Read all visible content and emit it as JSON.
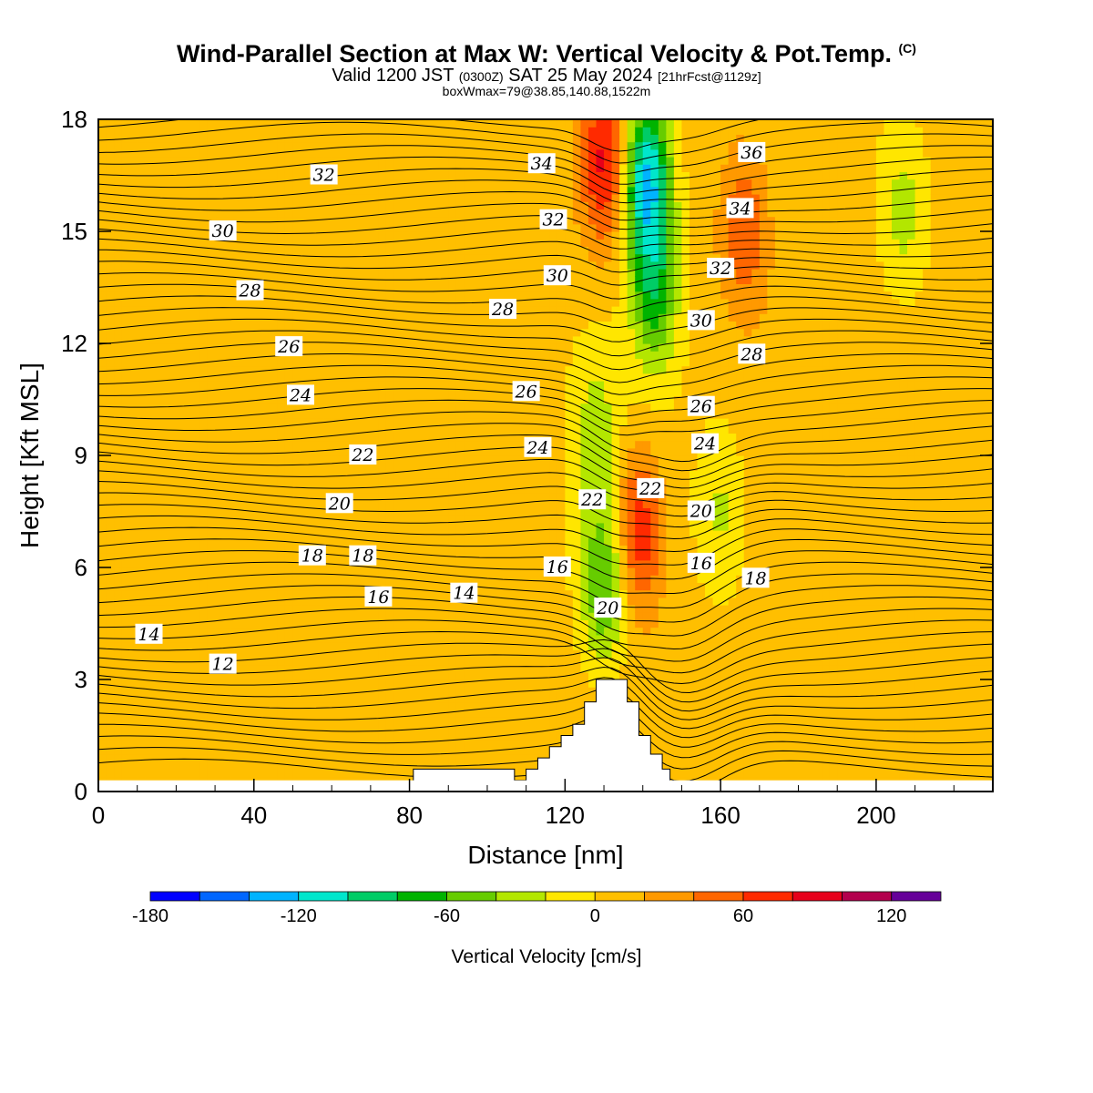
{
  "header": {
    "title": "Wind-Parallel Section at Max W: Vertical Velocity & Pot.Temp.",
    "copyright": "(C)",
    "valid_prefix": "Valid 1200 JST",
    "valid_utc": "(0300Z)",
    "valid_date": "SAT 25 May 2024",
    "forecast": "[21hrFcst@1129z]",
    "box_info": "boxWmax=79@38.85,140.88,1522m"
  },
  "chart_data": {
    "type": "heatmap",
    "xlabel": "Distance [nm]",
    "ylabel": "Height [Kft MSL]",
    "xlim": [
      0,
      230
    ],
    "ylim": [
      0,
      18
    ],
    "x_ticks": [
      "0",
      "40",
      "80",
      "120",
      "160",
      "200"
    ],
    "y_ticks": [
      "0",
      "3",
      "6",
      "9",
      "12",
      "15",
      "18"
    ],
    "colorbar": {
      "label": "Vertical Velocity [cm/s]",
      "ticks": [
        "-180",
        "-120",
        "-60",
        "0",
        "60",
        "120"
      ],
      "levels": [
        -180,
        -160,
        -140,
        -120,
        -100,
        -80,
        -60,
        -40,
        -20,
        0,
        20,
        40,
        60,
        80,
        100,
        120,
        140
      ],
      "colors": [
        "#0000ff",
        "#0066ff",
        "#00b3ff",
        "#00e6cc",
        "#00cc66",
        "#00b300",
        "#66cc00",
        "#b3e600",
        "#ffe600",
        "#ffbf00",
        "#ff9900",
        "#ff6600",
        "#ff2a00",
        "#e6001a",
        "#b3004d",
        "#660099"
      ]
    },
    "vertical_velocity_features": [
      {
        "x": 130,
        "y": 16.8,
        "value": 75
      },
      {
        "x": 141,
        "y": 16.5,
        "value": -130
      },
      {
        "x": 143,
        "y": 13.5,
        "value": -75
      },
      {
        "x": 139,
        "y": 7,
        "value": 70
      },
      {
        "x": 130,
        "y": 5.5,
        "value": -70
      },
      {
        "x": 128,
        "y": 9.5,
        "value": -35
      },
      {
        "x": 166,
        "y": 15,
        "value": 50
      },
      {
        "x": 160,
        "y": 7.5,
        "value": -30
      },
      {
        "x": 207,
        "y": 15.5,
        "value": -35
      }
    ],
    "potential_temperature_labels": [
      {
        "x": 13,
        "y": 4.2,
        "value": "14"
      },
      {
        "x": 32,
        "y": 3.4,
        "value": "12"
      },
      {
        "x": 55,
        "y": 6.3,
        "value": "18"
      },
      {
        "x": 68,
        "y": 6.3,
        "value": "18"
      },
      {
        "x": 72,
        "y": 5.2,
        "value": "16"
      },
      {
        "x": 94,
        "y": 5.3,
        "value": "14"
      },
      {
        "x": 118,
        "y": 6,
        "value": "16"
      },
      {
        "x": 62,
        "y": 7.7,
        "value": "20"
      },
      {
        "x": 68,
        "y": 9,
        "value": "22"
      },
      {
        "x": 52,
        "y": 10.6,
        "value": "24"
      },
      {
        "x": 49,
        "y": 11.9,
        "value": "26"
      },
      {
        "x": 39,
        "y": 13.4,
        "value": "28"
      },
      {
        "x": 32,
        "y": 15,
        "value": "30"
      },
      {
        "x": 58,
        "y": 16.5,
        "value": "32"
      },
      {
        "x": 104,
        "y": 12.9,
        "value": "28"
      },
      {
        "x": 110,
        "y": 10.7,
        "value": "26"
      },
      {
        "x": 113,
        "y": 9.2,
        "value": "24"
      },
      {
        "x": 127,
        "y": 7.8,
        "value": "22"
      },
      {
        "x": 131,
        "y": 4.9,
        "value": "20"
      },
      {
        "x": 118,
        "y": 13.8,
        "value": "30"
      },
      {
        "x": 117,
        "y": 15.3,
        "value": "32"
      },
      {
        "x": 114,
        "y": 16.8,
        "value": "34"
      },
      {
        "x": 142,
        "y": 8.1,
        "value": "22"
      },
      {
        "x": 155,
        "y": 10.3,
        "value": "26"
      },
      {
        "x": 156,
        "y": 9.3,
        "value": "24"
      },
      {
        "x": 155,
        "y": 7.5,
        "value": "20"
      },
      {
        "x": 155,
        "y": 6.1,
        "value": "16"
      },
      {
        "x": 169,
        "y": 5.7,
        "value": "18"
      },
      {
        "x": 155,
        "y": 12.6,
        "value": "30"
      },
      {
        "x": 160,
        "y": 14,
        "value": "32"
      },
      {
        "x": 165,
        "y": 15.6,
        "value": "34"
      },
      {
        "x": 168,
        "y": 17.1,
        "value": "36"
      },
      {
        "x": 168,
        "y": 11.7,
        "value": "28"
      }
    ],
    "terrain": [
      {
        "x": 81,
        "y": 0.6
      },
      {
        "x": 104,
        "y": 0.6
      },
      {
        "x": 107,
        "y": 0.3
      },
      {
        "x": 110,
        "y": 0.6
      },
      {
        "x": 113,
        "y": 0.9
      },
      {
        "x": 116,
        "y": 1.2
      },
      {
        "x": 119,
        "y": 1.5
      },
      {
        "x": 122,
        "y": 1.8
      },
      {
        "x": 125,
        "y": 2.4
      },
      {
        "x": 128,
        "y": 3.0
      },
      {
        "x": 133,
        "y": 3.0
      },
      {
        "x": 136,
        "y": 2.4
      },
      {
        "x": 139,
        "y": 1.5
      },
      {
        "x": 142,
        "y": 1.0
      },
      {
        "x": 145,
        "y": 0.6
      },
      {
        "x": 147,
        "y": 0.3
      }
    ]
  }
}
